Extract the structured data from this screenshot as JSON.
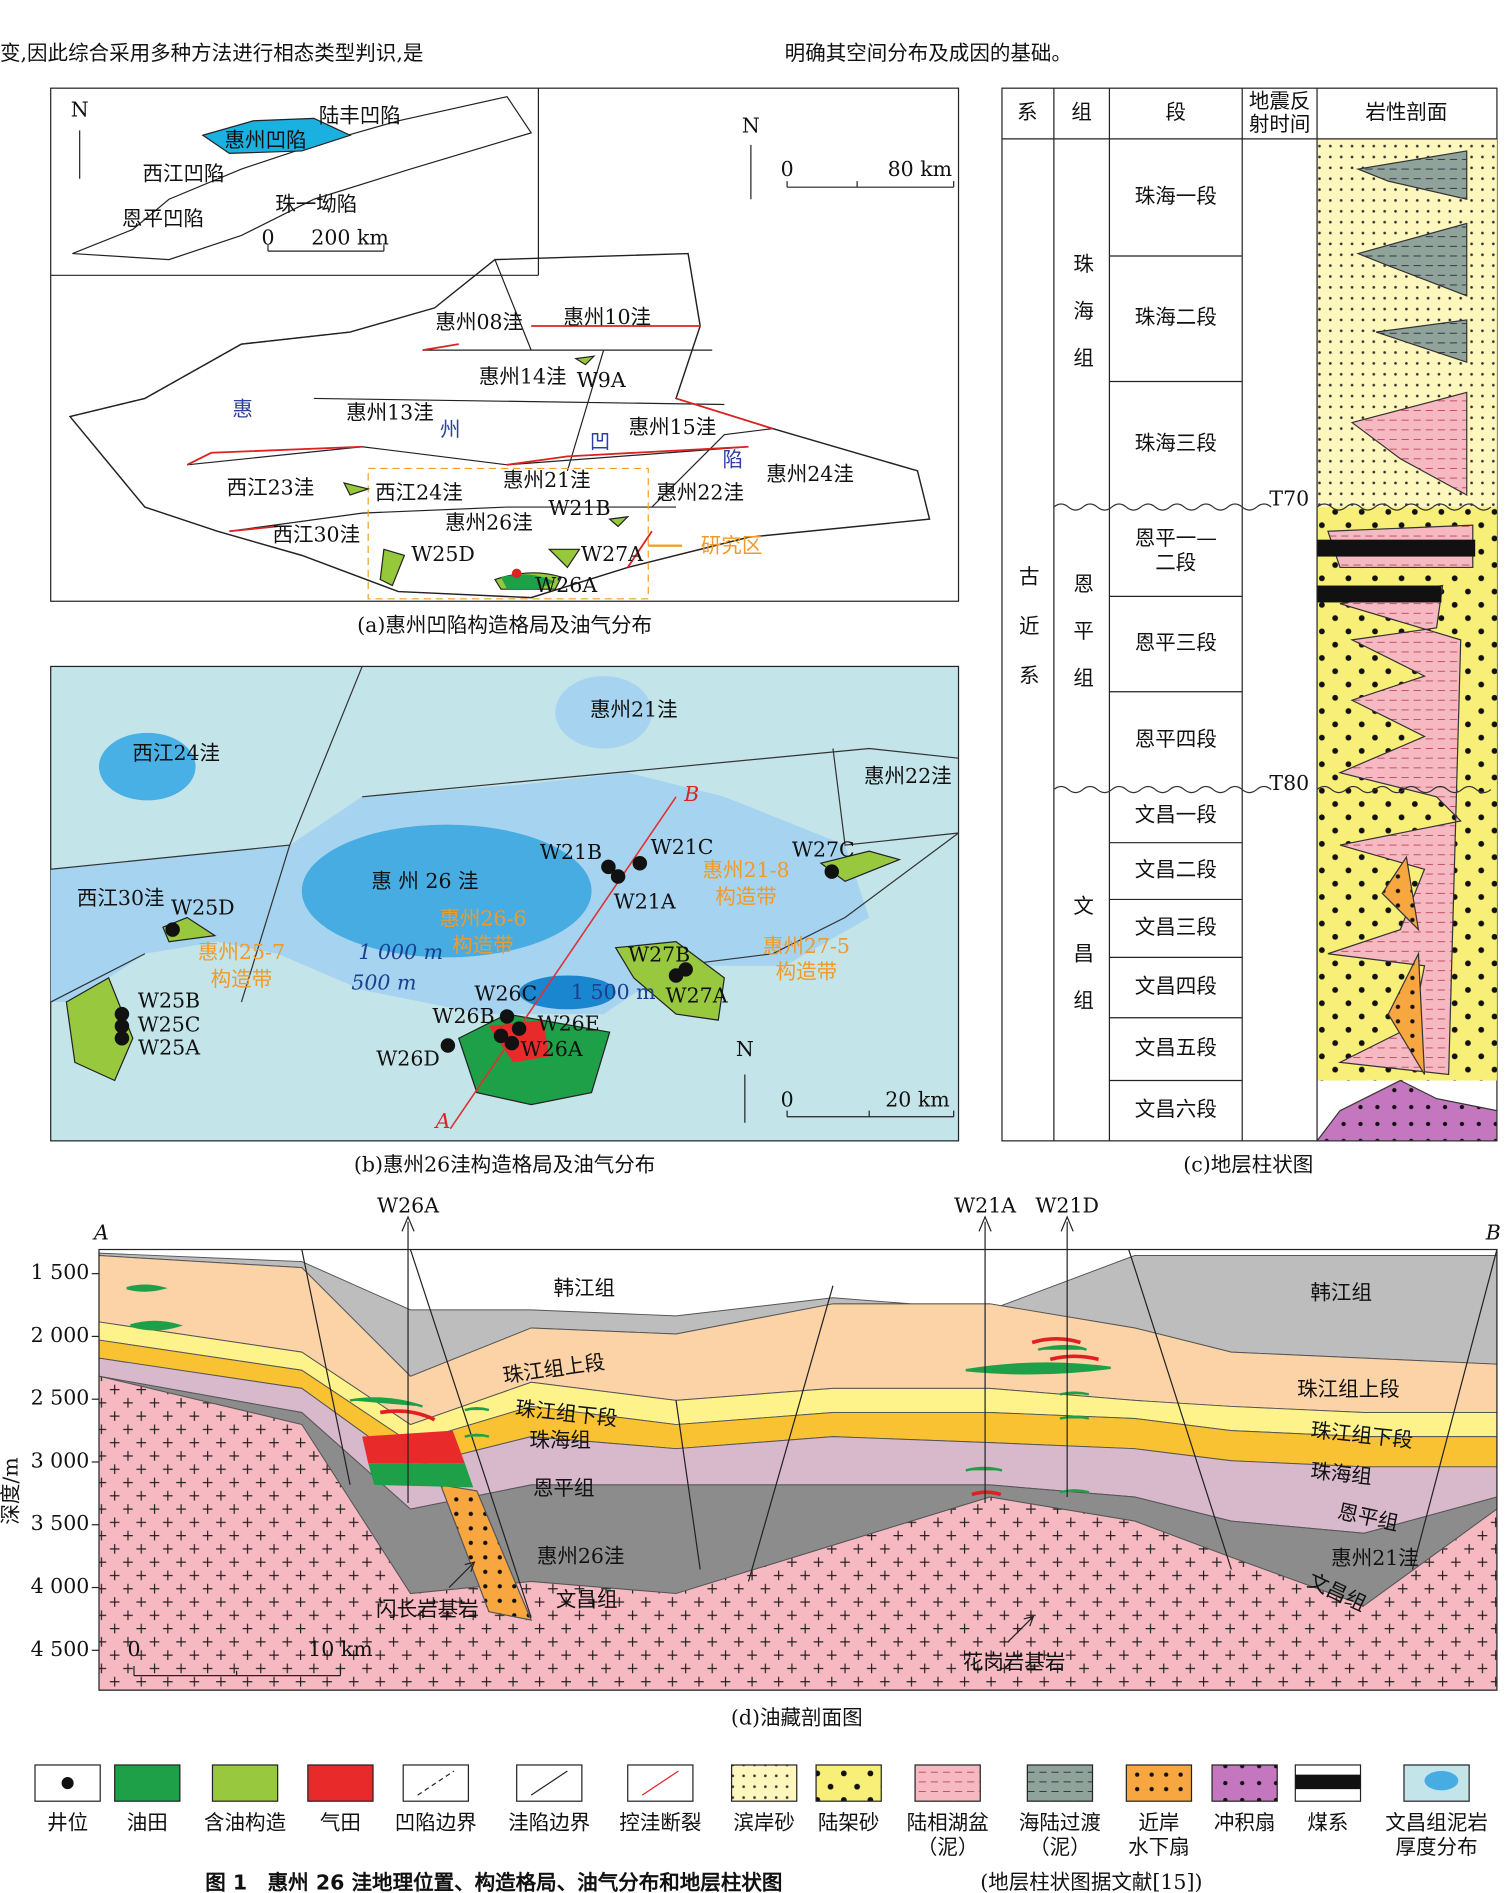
{
  "intro": [
    "变,因此综合采用多种方法进行相态类型判识,是",
    "明确其空间分布及成因的基础。"
  ],
  "panel_a": {
    "inset_labels": [
      "N",
      "陆丰凹陷",
      "惠州凹陷",
      "西江凹陷",
      "珠一坳陷",
      "恩平凹陷",
      "0",
      "200 km"
    ],
    "labels": [
      "N",
      "0",
      "80 km",
      "惠州08洼",
      "惠州10洼",
      "惠州14洼",
      "W9A",
      "惠",
      "惠州13洼",
      "州",
      "凹",
      "惠州15洼",
      "陷",
      "惠州24洼",
      "西江23洼",
      "西江24洼",
      "惠州21洼",
      "惠州22洼",
      "惠州26洼",
      "W21B",
      "西江30洼",
      "W25D",
      "W27A",
      "研究区",
      "W26A"
    ],
    "caption": "(a)惠州凹陷构造格局及油气分布"
  },
  "panel_b": {
    "labels": [
      "惠州21洼",
      "西江24洼",
      "惠州22洼",
      "B",
      "W21B",
      "W21C",
      "W27C",
      "惠 州 26 洼",
      "W21A",
      "惠州21-8",
      "构造带",
      "西江30洼",
      "W25D",
      "惠州26-6",
      "构造带",
      "1 000 m",
      "惠州25-7",
      "构造带",
      "惠州27-5",
      "构造带",
      "W27B",
      "500 m",
      "W26C",
      "1 500 m",
      "W27A",
      "W25B",
      "W25C",
      "W26B",
      "W26E",
      "W25A",
      "W26A",
      "W26D",
      "A",
      "N",
      "0",
      "20 km"
    ],
    "caption": "(b)惠州26洼构造格局及油气分布"
  },
  "panel_c": {
    "headers": [
      "系",
      "组",
      "段",
      "岩性剖面"
    ],
    "seismic_header": [
      "地震反",
      "射时间"
    ],
    "system": "古近系",
    "formations": [
      "珠海组",
      "恩平组",
      "文昌组"
    ],
    "members": [
      [
        "珠海一段"
      ],
      [
        "珠海二段"
      ],
      [
        "珠海三段"
      ],
      [
        "恩平一—",
        "二段"
      ],
      [
        "恩平三段"
      ],
      [
        "恩平四段"
      ],
      [
        "文昌一段"
      ],
      [
        "文昌二段"
      ],
      [
        "文昌三段"
      ],
      [
        "文昌四段"
      ],
      [
        "文昌五段"
      ],
      [
        "文昌六段"
      ]
    ],
    "horizons": [
      "T70",
      "T80"
    ],
    "caption": "(c)地层柱状图"
  },
  "panel_d": {
    "wells": [
      "W26A",
      "W21A",
      "W21D"
    ],
    "ends": [
      "A",
      "B"
    ],
    "y_label": "深度/m",
    "yticks": [
      {
        "value": 1500,
        "label": "1 500"
      },
      {
        "value": 2000,
        "label": "2 000"
      },
      {
        "value": 2500,
        "label": "2 500"
      },
      {
        "value": 3000,
        "label": "3 000"
      },
      {
        "value": 3500,
        "label": "3 500"
      },
      {
        "value": 4000,
        "label": "4 000"
      },
      {
        "value": 4500,
        "label": "4 500"
      }
    ],
    "labels": [
      "韩江组",
      "韩江组",
      "珠江组上段",
      "珠江组上段",
      "珠江组下段",
      "珠江组下段",
      "珠海组",
      "珠海组",
      "恩平组",
      "恩平组",
      "惠州26洼",
      "惠州21洼",
      "文昌组",
      "文昌组",
      "闪长岩基岩",
      "花岗岩基岩",
      "0",
      "10 km"
    ],
    "caption": "(d)油藏剖面图"
  },
  "legend": [
    [
      "井位"
    ],
    [
      "油田"
    ],
    [
      "含油构造"
    ],
    [
      "气田"
    ],
    [
      "凹陷边界"
    ],
    [
      "洼陷边界"
    ],
    [
      "控洼断裂"
    ],
    [
      "滨岸砂"
    ],
    [
      "陆架砂"
    ],
    [
      "陆相湖盆",
      "（泥）"
    ],
    [
      "海陆过渡",
      "（泥）"
    ],
    [
      "近岸",
      "水下扇"
    ],
    [
      "冲积扇"
    ],
    [
      "煤系"
    ],
    [
      "文昌组泥岩",
      "厚度分布"
    ]
  ],
  "figure_caption": {
    "title": "图 1　惠州 26 洼地理位置、构造格局、油气分布和地层柱状图",
    "note": "(地层柱状图据文献[15])"
  }
}
